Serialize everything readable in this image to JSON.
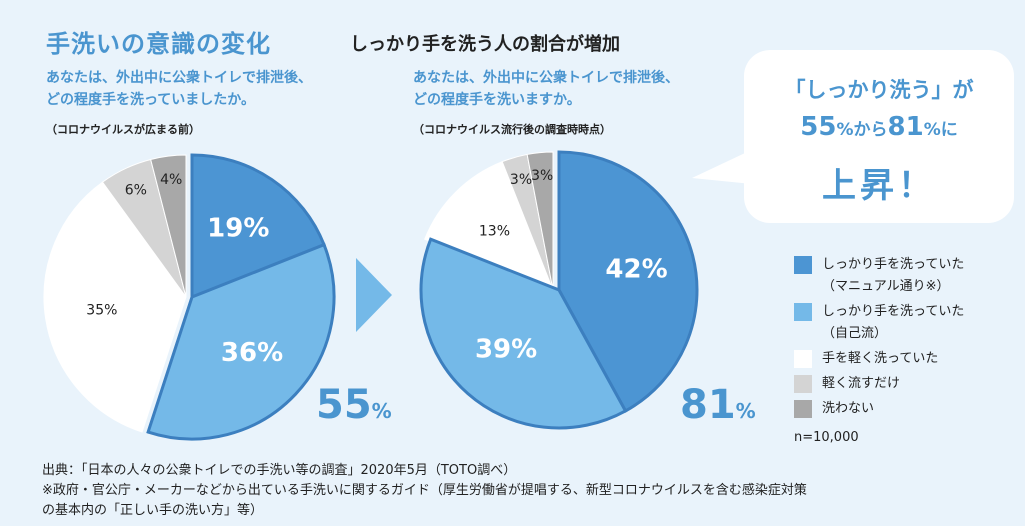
{
  "title": "手洗いの意識の変化",
  "subtitle": "しっかり手を洗う人の割合が増加",
  "colors": {
    "accent": "#4a95cf",
    "manual": "#4c95d3",
    "own": "#74b9e8",
    "light": "#ffffff",
    "rinse": "#d4d4d4",
    "none": "#a8a8a8",
    "border": "#3c7fbf"
  },
  "chart_data": [
    {
      "type": "pie",
      "question_line1": "あなたは、外出中に公衆トイレで排泄後、",
      "question_line2": "どの程度手を洗っていましたか。",
      "note": "（コロナウイルスが広まる前）",
      "labels": [
        "しっかり手を洗っていた（マニュアル通り※）",
        "しっかり手を洗っていた（自己流）",
        "手を軽く洗っていた",
        "軽く流すだけ",
        "洗わない"
      ],
      "values": [
        19,
        36,
        35,
        6,
        4
      ],
      "display": [
        "19%",
        "36%",
        "35%",
        "6%",
        "4%"
      ],
      "total_value": "55",
      "total_unit": "%"
    },
    {
      "type": "pie",
      "question_line1": "あなたは、外出中に公衆トイレで排泄後、",
      "question_line2": "どの程度手を洗いますか。",
      "note": "（コロナウイルス流行後の調査時時点）",
      "labels": [
        "しっかり手を洗っていた（マニュアル通り※）",
        "しっかり手を洗っていた（自己流）",
        "手を軽く洗っていた",
        "軽く流すだけ",
        "洗わない"
      ],
      "values": [
        42,
        39,
        13,
        3,
        3
      ],
      "display": [
        "42%",
        "39%",
        "13%",
        "3%",
        "3%"
      ],
      "total_value": "81",
      "total_unit": "%"
    }
  ],
  "callout": {
    "line1": "「しっかり洗う」が",
    "from_value": "55",
    "from_unit": "%から",
    "to_value": "81",
    "to_unit": "%に",
    "line3": "上昇！"
  },
  "legend": [
    {
      "line1": "しっかり手を洗っていた",
      "line2": "（マニュアル通り※）",
      "color": "#4c95d3"
    },
    {
      "line1": "しっかり手を洗っていた",
      "line2": "（自己流）",
      "color": "#74b9e8"
    },
    {
      "line1": "手を軽く洗っていた",
      "line2": "",
      "color": "#ffffff"
    },
    {
      "line1": "軽く流すだけ",
      "line2": "",
      "color": "#d4d4d4"
    },
    {
      "line1": "洗わない",
      "line2": "",
      "color": "#a8a8a8"
    }
  ],
  "sample_size": "n=10,000",
  "source_lines": [
    "出典：「日本の人々の公衆トイレでの手洗い等の調査」2020年5月（TOTO調べ）",
    "※政府・官公庁・メーカーなどから出ている手洗いに関するガイド（厚生労働省が提唱する、新型コロナウイルスを含む感染症対策",
    "の基本内の「正しい手の洗い方」等）"
  ]
}
